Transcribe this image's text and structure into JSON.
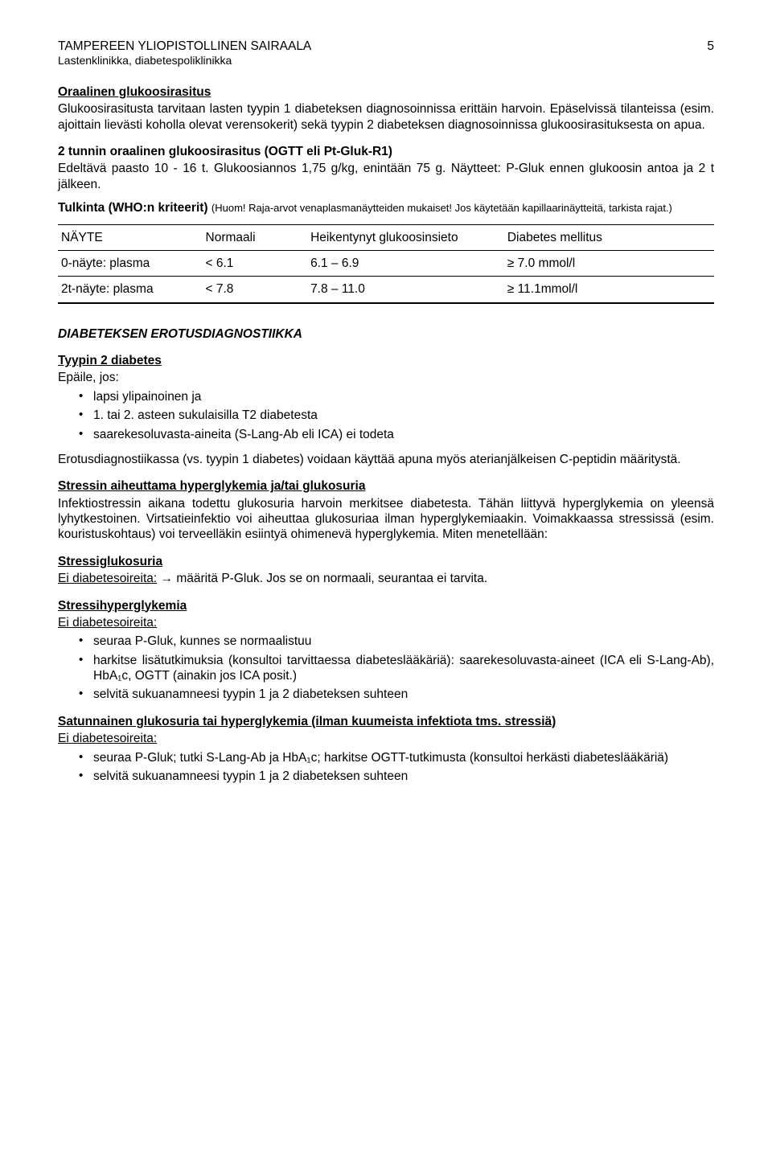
{
  "header": {
    "line1": "TAMPEREEN YLIOPISTOLLINEN SAIRAALA",
    "line2": "Lastenklinikka, diabetespoliklinikka",
    "page_number": "5"
  },
  "sec1": {
    "heading": "Oraalinen glukoosirasitus",
    "p1": "Glukoosirasitusta tarvitaan lasten tyypin 1 diabeteksen diagnosoinnissa erittäin harvoin. Epäselvissä tilanteissa (esim. ajoittain lievästi koholla olevat verensokerit) sekä tyypin 2 diabeteksen diagnosoinnissa glukoosirasituksesta on apua.",
    "sub1": "2 tunnin oraalinen glukoosirasitus (OGTT eli Pt-Gluk-R1)",
    "p2": "Edeltävä paasto 10 - 16 t. Glukoosiannos 1,75 g/kg, enintään 75 g. Näytteet: P-Gluk ennen glukoosin antoa ja 2 t jälkeen.",
    "tulkinta_lead": "Tulkinta (WHO:n kriteerit) ",
    "tulkinta_note": "(Huom! Raja-arvot venaplasmanäytteiden mukaiset! Jos käytetään kapil­laarinäytteitä, tarkista rajat.)"
  },
  "table": {
    "headers": [
      "NÄYTE",
      "Normaali",
      "Heikentynyt glu­koosinsieto",
      "Diabetes melli­tus"
    ],
    "rows": [
      [
        "0-näyte: plasma",
        "< 6.1",
        "6.1 – 6.9",
        "≥ 7.0 mmol/l"
      ],
      [
        "2t-näyte: plasma",
        "< 7.8",
        "7.8 – 11.0",
        "≥ 11.1mmol/l"
      ]
    ]
  },
  "sec2": {
    "heading": "DIABETEKSEN EROTUSDIAGNOSTIIKKA",
    "sub1": "Tyypin 2 diabetes",
    "p1": "Epäile, jos:",
    "bullets1": [
      "lapsi ylipainoinen ja",
      "1. tai 2. asteen sukulaisilla T2 diabetesta",
      "saarekesoluvasta-aineita (S-Lang-Ab eli ICA) ei todeta"
    ],
    "p2": "Erotusdiagnostiikassa (vs. tyypin 1 diabetes) voidaan käyttää apuna myös aterianjälkeisen C-peptidin määritystä.",
    "sub2": "Stressin aiheuttama hyperglykemia ja/tai glukosuria",
    "p3": "Infektiostressin aikana todettu glukosuria harvoin merkitsee diabetesta. Tähän liittyvä hy­perglykemia on yleensä lyhytkestoinen. Virtsatieinfektio voi aiheuttaa glukosuriaa ilman hyperglykemiaakin. Voimakkaassa stressissä (esim. kouristuskohtaus) voi terveelläkin esiintyä ohimenevä hyperglykemia. Miten menetellään:",
    "sub3": "Stressiglukosuria",
    "p4_lead": "Ei diabetesoireita:",
    "p4_rest": " → määritä P-Gluk. Jos se on normaali, seurantaa ei tarvita.",
    "sub4": "Stressihyperglykemia",
    "p5": "Ei diabetesoireita:",
    "bullets2": [
      "seuraa P-Gluk, kunnes se normaalistuu",
      "harkitse lisätutkimuksia (konsultoi tarvittaessa diabeteslääkäriä): saarekesoluvasta-aineet (ICA eli S-Lang-Ab), HbA₁c, OGTT (ainakin jos ICA posit.)",
      "selvitä sukuanamneesi tyypin 1 ja 2 diabeteksen suhteen"
    ],
    "sub5": "Satunnainen glukosuria tai hyperglykemia (ilman kuumeista infektiota tms. stressiä)",
    "p6": "Ei diabetesoireita:",
    "bullets3": [
      "seuraa P-Gluk; tutki S-Lang-Ab ja HbA₁c; harkitse OGTT-tutkimusta (konsultoi her­kästi diabeteslääkäriä)",
      "selvitä sukuanamneesi tyypin 1 ja 2 diabeteksen suhteen"
    ]
  }
}
